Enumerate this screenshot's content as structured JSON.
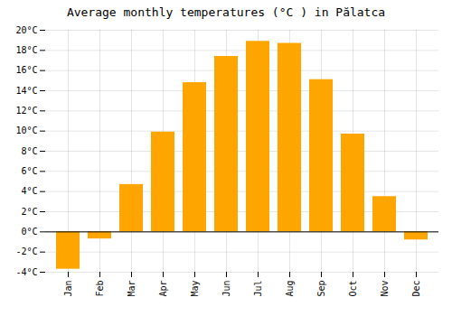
{
  "chart_data": {
    "type": "bar",
    "title": "Average monthly temperatures (°C ) in Pălatca",
    "categories": [
      "Jan",
      "Feb",
      "Mar",
      "Apr",
      "May",
      "Jun",
      "Jul",
      "Aug",
      "Sep",
      "Oct",
      "Nov",
      "Dec"
    ],
    "values": [
      -3.7,
      -0.7,
      4.7,
      9.9,
      14.8,
      17.4,
      18.9,
      18.7,
      15.1,
      9.7,
      3.5,
      -0.8
    ],
    "color": "#FFA500",
    "ylim": [
      -4,
      20
    ],
    "yticks": [
      {
        "value": -4,
        "label": "-4°C"
      },
      {
        "value": -2,
        "label": "-2°C"
      },
      {
        "value": 0,
        "label": "0°C"
      },
      {
        "value": 2,
        "label": "2°C"
      },
      {
        "value": 4,
        "label": "4°C"
      },
      {
        "value": 6,
        "label": "6°C"
      },
      {
        "value": 8,
        "label": "8°C"
      },
      {
        "value": 10,
        "label": "10°C"
      },
      {
        "value": 12,
        "label": "12°C"
      },
      {
        "value": 14,
        "label": "14°C"
      },
      {
        "value": 16,
        "label": "16°C"
      },
      {
        "value": 18,
        "label": "18°C"
      },
      {
        "value": 20,
        "label": "20°C"
      }
    ],
    "grid": true
  }
}
